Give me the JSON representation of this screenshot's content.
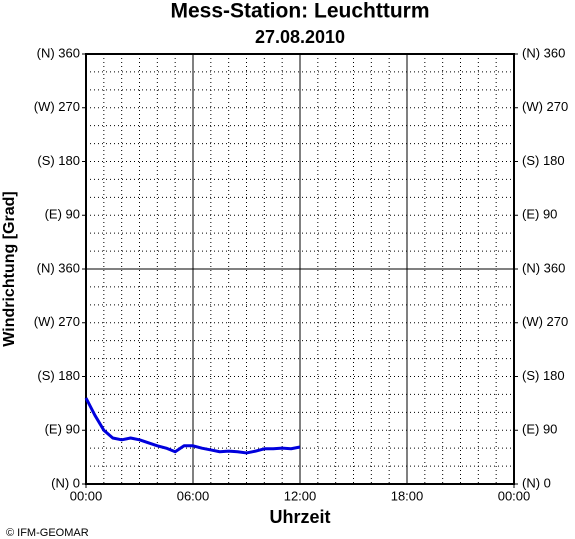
{
  "chart_data": {
    "type": "line",
    "title": "Mess-Station: Leuchtturm",
    "subtitle": "27.08.2010",
    "y_label": "Windrichtung [Grad]",
    "x_label": "Uhrzeit",
    "footer": "© IFM-GEOMAR",
    "x": [
      0,
      0.5,
      1,
      1.5,
      2,
      2.5,
      3,
      3.5,
      4,
      4.5,
      5,
      5.5,
      6,
      6.5,
      7,
      7.5,
      8,
      8.5,
      9,
      9.5,
      10,
      10.5,
      11,
      11.5,
      12
    ],
    "series": [
      {
        "color": "#0000dd",
        "values": [
          144,
          115,
          90,
          77,
          74,
          77,
          74,
          69,
          64,
          60,
          54,
          64,
          64,
          60,
          57,
          54,
          55,
          54,
          52,
          55,
          59,
          59,
          60,
          59,
          62
        ]
      }
    ],
    "xlim": [
      0,
      24
    ],
    "xticks": [
      {
        "value": 0,
        "label": "00:00"
      },
      {
        "value": 6,
        "label": "06:00"
      },
      {
        "value": 12,
        "label": "12:00"
      },
      {
        "value": 18,
        "label": "18:00"
      },
      {
        "value": 24,
        "label": "00:00"
      }
    ],
    "ylim": [
      0,
      720
    ],
    "yticks": [
      {
        "value": 0,
        "label": "(N) 0"
      },
      {
        "value": 90,
        "label": "(E) 90"
      },
      {
        "value": 180,
        "label": "(S) 180"
      },
      {
        "value": 270,
        "label": "(W) 270"
      },
      {
        "value": 360,
        "label": "(N) 360"
      },
      {
        "value": 450,
        "label": "(E) 90"
      },
      {
        "value": 540,
        "label": "(S) 180"
      },
      {
        "value": 630,
        "label": "(W) 270"
      },
      {
        "value": 720,
        "label": "(N) 360"
      }
    ],
    "y2lim": [
      0,
      720
    ],
    "y2ticks": [
      {
        "value": 0,
        "label": "(N) 0"
      },
      {
        "value": 90,
        "label": "(E) 90"
      },
      {
        "value": 180,
        "label": "(S) 180"
      },
      {
        "value": 270,
        "label": "(W) 270"
      },
      {
        "value": 360,
        "label": "(N) 360"
      },
      {
        "value": 450,
        "label": "(E) 90"
      },
      {
        "value": 540,
        "label": "(S) 180"
      },
      {
        "value": 630,
        "label": "(W) 270"
      },
      {
        "value": 720,
        "label": "(N) 360"
      }
    ],
    "grid": true
  }
}
